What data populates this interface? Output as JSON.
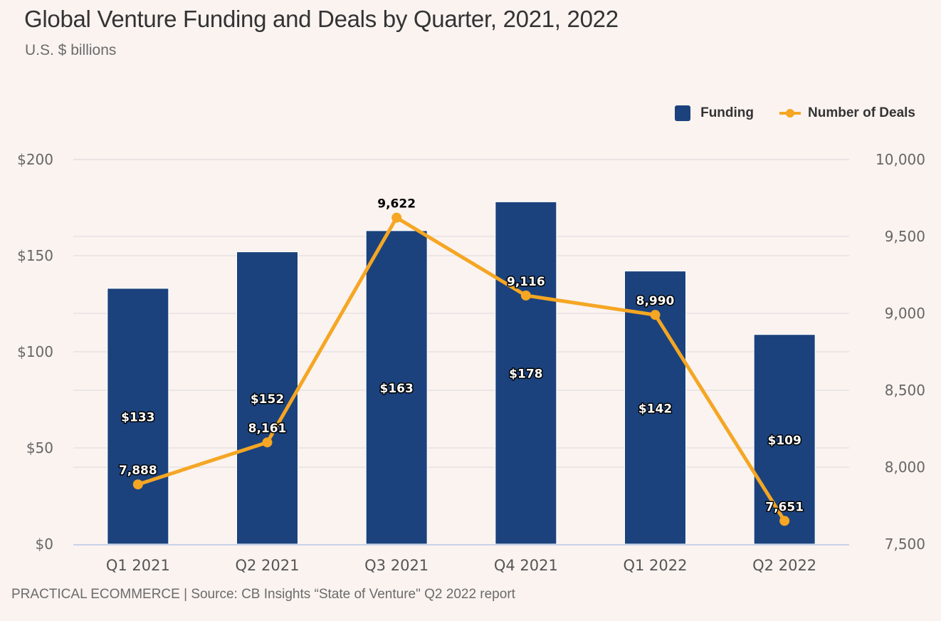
{
  "header": {
    "title": "Global Venture Funding and Deals by Quarter, 2021, 2022",
    "subtitle": "U.S. $ billions"
  },
  "legend": {
    "items": [
      {
        "label": "Funding",
        "icon": "square-swatch-icon"
      },
      {
        "label": "Number of Deals",
        "icon": "line-marker-icon"
      }
    ]
  },
  "footer": {
    "credit": "PRACTICAL ECOMMERCE | Source: CB Insights “State of Venture\" Q2 2022 report"
  },
  "colors": {
    "background": "#faf3f0",
    "funding": "#1b427c",
    "deals": "#f5a623",
    "grid": "#e6e2e2",
    "axis": "#c9d3e6"
  },
  "chart_data": {
    "type": "bar",
    "title": "Global Venture Funding and Deals by Quarter, 2021, 2022",
    "subtitle": "U.S. $ billions",
    "xlabel": "",
    "categories": [
      "Q1 2021",
      "Q2 2021",
      "Q3 2021",
      "Q4 2021",
      "Q1 2022",
      "Q2 2022"
    ],
    "series": [
      {
        "name": "Funding",
        "type": "bar",
        "axis": "left",
        "values": [
          133,
          152,
          163,
          178,
          142,
          109
        ],
        "labels": [
          "$133",
          "$152",
          "$163",
          "$178",
          "$142",
          "$109"
        ]
      },
      {
        "name": "Number of Deals",
        "type": "line",
        "axis": "right",
        "values": [
          7888,
          8161,
          9622,
          9116,
          8990,
          7651
        ],
        "labels": [
          "7,888",
          "8,161",
          "9,622",
          "9,116",
          "8,990",
          "7,651"
        ]
      }
    ],
    "y_left": {
      "ylabel": "",
      "ylim": [
        0,
        200
      ],
      "ticks": [
        0,
        50,
        100,
        150,
        200
      ],
      "tick_labels": [
        "$0",
        "$50",
        "$100",
        "$150",
        "$200"
      ]
    },
    "y_right": {
      "ylabel": "",
      "ylim": [
        7500,
        10000
      ],
      "ticks": [
        7500,
        8000,
        8500,
        9000,
        9500,
        10000
      ],
      "tick_labels": [
        "7,500",
        "8,000",
        "8,500",
        "9,000",
        "9,500",
        "10,000"
      ]
    },
    "grid": true,
    "legend_position": "top-right"
  }
}
